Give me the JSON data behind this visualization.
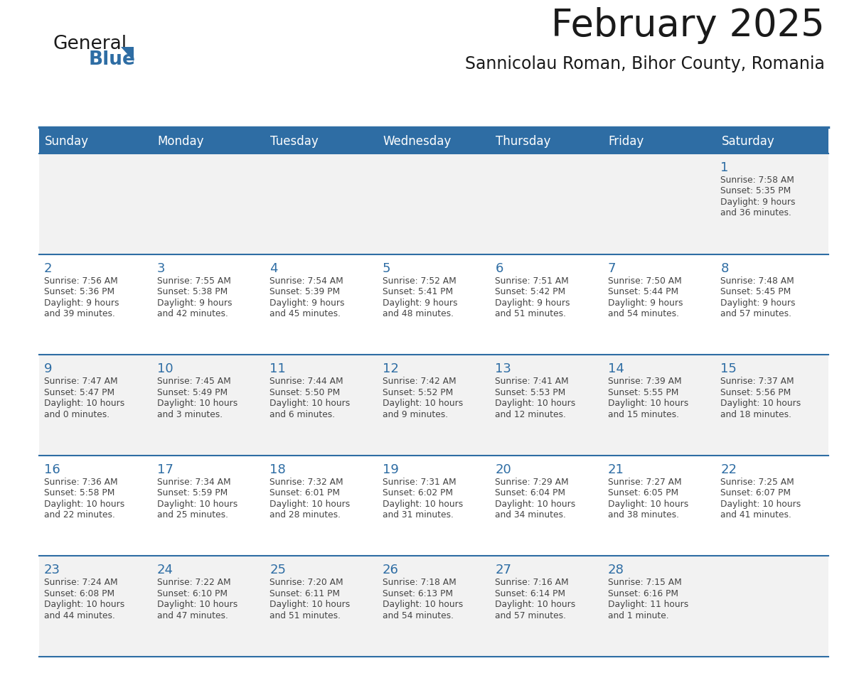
{
  "title": "February 2025",
  "subtitle": "Sannicolau Roman, Bihor County, Romania",
  "header_bg": "#2E6DA4",
  "header_text": "#FFFFFF",
  "cell_bg_odd": "#F2F2F2",
  "cell_bg_even": "#FFFFFF",
  "day_number_color": "#2E6DA4",
  "text_color": "#444444",
  "border_color": "#2E6DA4",
  "days_of_week": [
    "Sunday",
    "Monday",
    "Tuesday",
    "Wednesday",
    "Thursday",
    "Friday",
    "Saturday"
  ],
  "calendar_data": [
    [
      null,
      null,
      null,
      null,
      null,
      null,
      {
        "day": 1,
        "sunrise": "7:58 AM",
        "sunset": "5:35 PM",
        "daylight": "9 hours\nand 36 minutes."
      }
    ],
    [
      {
        "day": 2,
        "sunrise": "7:56 AM",
        "sunset": "5:36 PM",
        "daylight": "9 hours\nand 39 minutes."
      },
      {
        "day": 3,
        "sunrise": "7:55 AM",
        "sunset": "5:38 PM",
        "daylight": "9 hours\nand 42 minutes."
      },
      {
        "day": 4,
        "sunrise": "7:54 AM",
        "sunset": "5:39 PM",
        "daylight": "9 hours\nand 45 minutes."
      },
      {
        "day": 5,
        "sunrise": "7:52 AM",
        "sunset": "5:41 PM",
        "daylight": "9 hours\nand 48 minutes."
      },
      {
        "day": 6,
        "sunrise": "7:51 AM",
        "sunset": "5:42 PM",
        "daylight": "9 hours\nand 51 minutes."
      },
      {
        "day": 7,
        "sunrise": "7:50 AM",
        "sunset": "5:44 PM",
        "daylight": "9 hours\nand 54 minutes."
      },
      {
        "day": 8,
        "sunrise": "7:48 AM",
        "sunset": "5:45 PM",
        "daylight": "9 hours\nand 57 minutes."
      }
    ],
    [
      {
        "day": 9,
        "sunrise": "7:47 AM",
        "sunset": "5:47 PM",
        "daylight": "10 hours\nand 0 minutes."
      },
      {
        "day": 10,
        "sunrise": "7:45 AM",
        "sunset": "5:49 PM",
        "daylight": "10 hours\nand 3 minutes."
      },
      {
        "day": 11,
        "sunrise": "7:44 AM",
        "sunset": "5:50 PM",
        "daylight": "10 hours\nand 6 minutes."
      },
      {
        "day": 12,
        "sunrise": "7:42 AM",
        "sunset": "5:52 PM",
        "daylight": "10 hours\nand 9 minutes."
      },
      {
        "day": 13,
        "sunrise": "7:41 AM",
        "sunset": "5:53 PM",
        "daylight": "10 hours\nand 12 minutes."
      },
      {
        "day": 14,
        "sunrise": "7:39 AM",
        "sunset": "5:55 PM",
        "daylight": "10 hours\nand 15 minutes."
      },
      {
        "day": 15,
        "sunrise": "7:37 AM",
        "sunset": "5:56 PM",
        "daylight": "10 hours\nand 18 minutes."
      }
    ],
    [
      {
        "day": 16,
        "sunrise": "7:36 AM",
        "sunset": "5:58 PM",
        "daylight": "10 hours\nand 22 minutes."
      },
      {
        "day": 17,
        "sunrise": "7:34 AM",
        "sunset": "5:59 PM",
        "daylight": "10 hours\nand 25 minutes."
      },
      {
        "day": 18,
        "sunrise": "7:32 AM",
        "sunset": "6:01 PM",
        "daylight": "10 hours\nand 28 minutes."
      },
      {
        "day": 19,
        "sunrise": "7:31 AM",
        "sunset": "6:02 PM",
        "daylight": "10 hours\nand 31 minutes."
      },
      {
        "day": 20,
        "sunrise": "7:29 AM",
        "sunset": "6:04 PM",
        "daylight": "10 hours\nand 34 minutes."
      },
      {
        "day": 21,
        "sunrise": "7:27 AM",
        "sunset": "6:05 PM",
        "daylight": "10 hours\nand 38 minutes."
      },
      {
        "day": 22,
        "sunrise": "7:25 AM",
        "sunset": "6:07 PM",
        "daylight": "10 hours\nand 41 minutes."
      }
    ],
    [
      {
        "day": 23,
        "sunrise": "7:24 AM",
        "sunset": "6:08 PM",
        "daylight": "10 hours\nand 44 minutes."
      },
      {
        "day": 24,
        "sunrise": "7:22 AM",
        "sunset": "6:10 PM",
        "daylight": "10 hours\nand 47 minutes."
      },
      {
        "day": 25,
        "sunrise": "7:20 AM",
        "sunset": "6:11 PM",
        "daylight": "10 hours\nand 51 minutes."
      },
      {
        "day": 26,
        "sunrise": "7:18 AM",
        "sunset": "6:13 PM",
        "daylight": "10 hours\nand 54 minutes."
      },
      {
        "day": 27,
        "sunrise": "7:16 AM",
        "sunset": "6:14 PM",
        "daylight": "10 hours\nand 57 minutes."
      },
      {
        "day": 28,
        "sunrise": "7:15 AM",
        "sunset": "6:16 PM",
        "daylight": "11 hours\nand 1 minute."
      },
      null
    ]
  ],
  "logo_general_color": "#1a1a1a",
  "logo_blue_color": "#2E6DA4",
  "title_color": "#1a1a1a",
  "subtitle_color": "#1a1a1a"
}
